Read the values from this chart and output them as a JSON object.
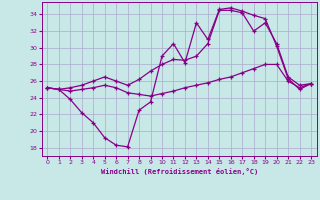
{
  "xlabel": "Windchill (Refroidissement éolien,°C)",
  "bg_color": "#c8e8e8",
  "line_color": "#880088",
  "grid_color": "#aaaacc",
  "xlim": [
    -0.5,
    23.5
  ],
  "ylim": [
    17.0,
    35.5
  ],
  "yticks": [
    18,
    20,
    22,
    24,
    26,
    28,
    30,
    32,
    34
  ],
  "xticks": [
    0,
    1,
    2,
    3,
    4,
    5,
    6,
    7,
    8,
    9,
    10,
    11,
    12,
    13,
    14,
    15,
    16,
    17,
    18,
    19,
    20,
    21,
    22,
    23
  ],
  "line1_x": [
    0,
    1,
    2,
    3,
    4,
    5,
    6,
    7,
    8,
    9,
    10,
    11,
    12,
    13,
    14,
    15,
    16,
    17,
    18,
    19,
    20,
    21,
    22,
    23
  ],
  "line1_y": [
    25.2,
    25.0,
    23.8,
    22.2,
    21.0,
    19.2,
    18.3,
    18.1,
    22.5,
    23.5,
    29.0,
    30.5,
    28.2,
    33.0,
    31.0,
    34.6,
    34.8,
    34.4,
    33.9,
    33.5,
    30.2,
    26.3,
    25.0,
    25.7
  ],
  "line2_x": [
    0,
    1,
    2,
    3,
    4,
    5,
    6,
    7,
    8,
    9,
    10,
    11,
    12,
    13,
    14,
    15,
    16,
    17,
    18,
    19,
    20,
    21,
    22,
    23
  ],
  "line2_y": [
    25.2,
    25.0,
    25.2,
    25.5,
    26.0,
    26.5,
    26.0,
    25.5,
    26.2,
    27.2,
    28.0,
    28.6,
    28.5,
    29.0,
    30.5,
    34.5,
    34.5,
    34.2,
    32.0,
    33.0,
    30.5,
    26.5,
    25.5,
    25.7
  ],
  "line3_x": [
    0,
    1,
    2,
    3,
    4,
    5,
    6,
    7,
    8,
    9,
    10,
    11,
    12,
    13,
    14,
    15,
    16,
    17,
    18,
    19,
    20,
    21,
    22,
    23
  ],
  "line3_y": [
    25.2,
    25.0,
    24.8,
    25.0,
    25.2,
    25.5,
    25.2,
    24.6,
    24.4,
    24.2,
    24.5,
    24.8,
    25.2,
    25.5,
    25.8,
    26.2,
    26.5,
    27.0,
    27.5,
    28.0,
    28.0,
    26.0,
    25.2,
    25.7
  ]
}
